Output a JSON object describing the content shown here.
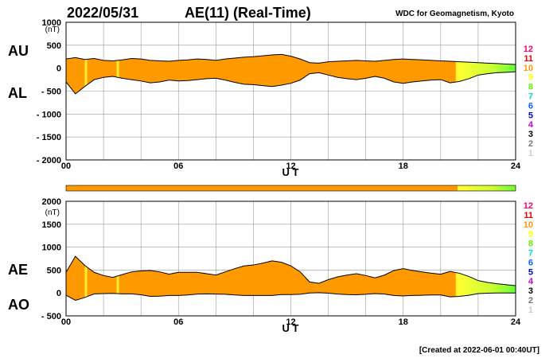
{
  "header": {
    "date": "2022/05/31",
    "title": "AE(11) (Real-Time)",
    "source": "WDC for Geomagnetism, Kyoto"
  },
  "footer": {
    "created": "[Created at 2022-06-01 00:40UT]"
  },
  "colors": {
    "fill": "#ff9900",
    "frame": "#000000",
    "grid": "#999999",
    "grad_yellow": "#ffff33",
    "grad_lightgreen": "#ccff33",
    "grad_green": "#66ff33"
  },
  "station_scale": [
    {
      "label": "12",
      "color": "#ff0066"
    },
    {
      "label": "11",
      "color": "#ee0000"
    },
    {
      "label": "10",
      "color": "#ff9900"
    },
    {
      "label": "9",
      "color": "#ffff00"
    },
    {
      "label": "8",
      "color": "#66ee00"
    },
    {
      "label": "7",
      "color": "#00dddd"
    },
    {
      "label": "6",
      "color": "#0066ff"
    },
    {
      "label": "5",
      "color": "#0000cc"
    },
    {
      "label": "4",
      "color": "#cc00cc"
    },
    {
      "label": "3",
      "color": "#000000"
    },
    {
      "label": "2",
      "color": "#777777"
    },
    {
      "label": "1",
      "color": "#cccccc"
    }
  ],
  "chart_data": [
    {
      "type": "area",
      "xlabel": "U T",
      "ylabel_top": "AU",
      "ylabel_bottom": "AL",
      "yunit": "(nT)",
      "xlim": [
        0,
        24
      ],
      "ylim": [
        -2000,
        1000
      ],
      "xticks": [
        "00",
        "06",
        "12",
        "18",
        "24"
      ],
      "yticks": [
        1000,
        500,
        0,
        -500,
        -1000,
        -1500,
        -2000
      ],
      "ytick_labels": [
        "1000",
        "500",
        "0",
        "- 500",
        "- 1000",
        "- 1500",
        "- 2000"
      ],
      "x": [
        0,
        0.5,
        1,
        1.5,
        2,
        2.5,
        3,
        3.5,
        4,
        4.5,
        5,
        5.5,
        6,
        6.5,
        7,
        7.5,
        8,
        8.5,
        9,
        9.5,
        10,
        10.5,
        11,
        11.5,
        12,
        12.5,
        13,
        13.5,
        14,
        14.5,
        15,
        15.5,
        16,
        16.5,
        17,
        17.5,
        18,
        18.5,
        19,
        19.5,
        20,
        20.5,
        21,
        21.5,
        22,
        22.5,
        23,
        23.5,
        24
      ],
      "series": [
        {
          "name": "AU",
          "values": [
            200,
            230,
            190,
            210,
            170,
            160,
            180,
            210,
            200,
            170,
            160,
            150,
            170,
            180,
            200,
            190,
            170,
            200,
            220,
            240,
            250,
            270,
            290,
            300,
            260,
            200,
            120,
            110,
            140,
            150,
            160,
            170,
            160,
            150,
            170,
            190,
            200,
            190,
            180,
            170,
            160,
            150,
            140,
            130,
            120,
            110,
            100,
            90,
            80
          ]
        },
        {
          "name": "AL",
          "values": [
            -300,
            -560,
            -400,
            -250,
            -200,
            -180,
            -220,
            -250,
            -280,
            -320,
            -300,
            -260,
            -280,
            -270,
            -250,
            -230,
            -220,
            -260,
            -310,
            -350,
            -360,
            -380,
            -400,
            -370,
            -330,
            -260,
            -120,
            -100,
            -150,
            -200,
            -230,
            -250,
            -220,
            -180,
            -220,
            -300,
            -330,
            -300,
            -280,
            -260,
            -250,
            -320,
            -290,
            -230,
            -150,
            -120,
            -100,
            -90,
            -80
          ]
        }
      ]
    },
    {
      "type": "area",
      "xlabel": "U T",
      "ylabel_top": "AE",
      "ylabel_bottom": "AO",
      "yunit": "(nT)",
      "xlim": [
        0,
        24
      ],
      "ylim": [
        -500,
        2000
      ],
      "xticks": [
        "00",
        "06",
        "12",
        "18",
        "24"
      ],
      "yticks": [
        2000,
        1500,
        1000,
        500,
        0,
        -500
      ],
      "ytick_labels": [
        "2000",
        "1500",
        "1000",
        "500",
        "0",
        "- 500"
      ],
      "x": [
        0,
        0.5,
        1,
        1.5,
        2,
        2.5,
        3,
        3.5,
        4,
        4.5,
        5,
        5.5,
        6,
        6.5,
        7,
        7.5,
        8,
        8.5,
        9,
        9.5,
        10,
        10.5,
        11,
        11.5,
        12,
        12.5,
        13,
        13.5,
        14,
        14.5,
        15,
        15.5,
        16,
        16.5,
        17,
        17.5,
        18,
        18.5,
        19,
        19.5,
        20,
        20.5,
        21,
        21.5,
        22,
        22.5,
        23,
        23.5,
        24
      ],
      "series": [
        {
          "name": "AE",
          "values": [
            450,
            800,
            600,
            450,
            380,
            340,
            400,
            460,
            480,
            490,
            460,
            410,
            450,
            450,
            450,
            420,
            390,
            460,
            530,
            590,
            610,
            650,
            700,
            670,
            590,
            460,
            240,
            210,
            290,
            350,
            390,
            420,
            380,
            330,
            390,
            490,
            530,
            490,
            460,
            430,
            410,
            470,
            430,
            360,
            270,
            230,
            200,
            180,
            160
          ]
        },
        {
          "name": "AO",
          "values": [
            -50,
            -160,
            -100,
            -20,
            -15,
            -10,
            -20,
            -20,
            -40,
            -75,
            -70,
            -55,
            -55,
            -45,
            -25,
            -20,
            -25,
            -30,
            -45,
            -55,
            -55,
            -55,
            -55,
            -35,
            -35,
            -30,
            0,
            5,
            -5,
            -25,
            -35,
            -40,
            -30,
            -15,
            -25,
            -55,
            -65,
            -55,
            -50,
            -45,
            -45,
            -85,
            -75,
            -50,
            -15,
            -5,
            0,
            0,
            0
          ]
        }
      ]
    }
  ]
}
